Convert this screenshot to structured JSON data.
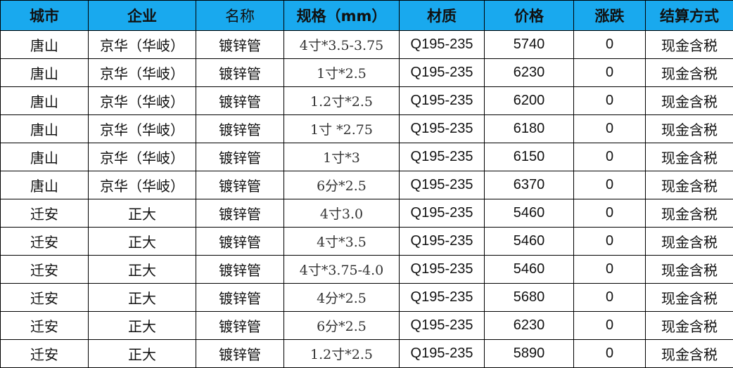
{
  "table": {
    "headers": [
      "城市",
      "企业",
      "名称",
      "规格（mm）",
      "材质",
      "价格",
      "涨跌",
      "结算方式"
    ],
    "rows": [
      [
        "唐山",
        "京华（华岐）",
        "镀锌管",
        "4寸*3.5-3.75",
        "Q195-235",
        "5740",
        "0",
        "现金含税"
      ],
      [
        "唐山",
        "京华（华岐）",
        "镀锌管",
        "1寸*2.5",
        "Q195-235",
        "6230",
        "0",
        "现金含税"
      ],
      [
        "唐山",
        "京华（华岐）",
        "镀锌管",
        "1.2寸*2.5",
        "Q195-235",
        "6200",
        "0",
        "现金含税"
      ],
      [
        "唐山",
        "京华（华岐）",
        "镀锌管",
        "1寸 *2.75",
        "Q195-235",
        "6180",
        "0",
        "现金含税"
      ],
      [
        "唐山",
        "京华（华岐）",
        "镀锌管",
        "1寸*3",
        "Q195-235",
        "6150",
        "0",
        "现金含税"
      ],
      [
        "唐山",
        "京华（华岐）",
        "镀锌管",
        "6分*2.5",
        "Q195-235",
        "6370",
        "0",
        "现金含税"
      ],
      [
        "迁安",
        "正大",
        "镀锌管",
        "4寸3.0",
        "Q195-235",
        "5460",
        "0",
        "现金含税"
      ],
      [
        "迁安",
        "正大",
        "镀锌管",
        "4寸*3.5",
        "Q195-235",
        "5460",
        "0",
        "现金含税"
      ],
      [
        "迁安",
        "正大",
        "镀锌管",
        "4寸*3.75-4.0",
        "Q195-235",
        "5460",
        "0",
        "现金含税"
      ],
      [
        "迁安",
        "正大",
        "镀锌管",
        "4分*2.5",
        "Q195-235",
        "5680",
        "0",
        "现金含税"
      ],
      [
        "迁安",
        "正大",
        "镀锌管",
        "6分*2.5",
        "Q195-235",
        "6230",
        "0",
        "现金含税"
      ],
      [
        "迁安",
        "正大",
        "镀锌管",
        "1.2寸*2.5",
        "Q195-235",
        "5890",
        "0",
        "现金含税"
      ]
    ]
  }
}
